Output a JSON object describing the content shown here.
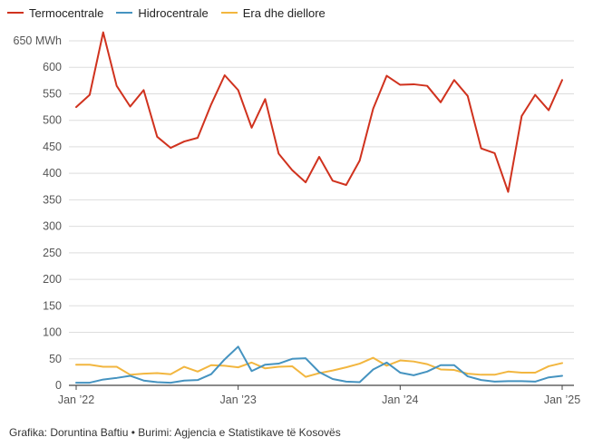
{
  "legend": [
    {
      "name": "Termocentrale",
      "color": "#d0321e"
    },
    {
      "name": "Hidrocentrale",
      "color": "#4593c0"
    },
    {
      "name": "Era dhe diellore",
      "color": "#f2b63f"
    }
  ],
  "footer": "Grafika: Doruntina Baftiu • Burimi: Agjencia e Statistikave të Kosovës",
  "chart_data": {
    "type": "line",
    "x": [
      "2022-01",
      "2022-02",
      "2022-03",
      "2022-04",
      "2022-05",
      "2022-06",
      "2022-07",
      "2022-08",
      "2022-09",
      "2022-10",
      "2022-11",
      "2022-12",
      "2023-01",
      "2023-02",
      "2023-03",
      "2023-04",
      "2023-05",
      "2023-06",
      "2023-07",
      "2023-08",
      "2023-09",
      "2023-10",
      "2023-11",
      "2023-12",
      "2024-01",
      "2024-02",
      "2024-03",
      "2024-04",
      "2024-05",
      "2024-06",
      "2024-07",
      "2024-08",
      "2024-09",
      "2024-10",
      "2024-11",
      "2024-12",
      "2025-01"
    ],
    "x_ticks": [
      {
        "x": "2022-01",
        "label": "Jan ’22"
      },
      {
        "x": "2023-01",
        "label": "Jan ’23"
      },
      {
        "x": "2024-01",
        "label": "Jan ’24"
      },
      {
        "x": "2025-01",
        "label": "Jan ’25"
      }
    ],
    "y_ticks": [
      {
        "value": 0,
        "label": "0"
      },
      {
        "value": 50,
        "label": "50"
      },
      {
        "value": 100,
        "label": "100"
      },
      {
        "value": 150,
        "label": "150"
      },
      {
        "value": 200,
        "label": "200"
      },
      {
        "value": 250,
        "label": "250"
      },
      {
        "value": 300,
        "label": "300"
      },
      {
        "value": 350,
        "label": "350"
      },
      {
        "value": 400,
        "label": "400"
      },
      {
        "value": 450,
        "label": "450"
      },
      {
        "value": 500,
        "label": "500"
      },
      {
        "value": 550,
        "label": "550"
      },
      {
        "value": 600,
        "label": "600"
      },
      {
        "value": 650,
        "label": "650 MWh"
      }
    ],
    "ylim": [
      0,
      650
    ],
    "grid": true,
    "legend_position": "top-left",
    "series": [
      {
        "name": "Termocentrale",
        "color": "#d0321e",
        "values": [
          525,
          548,
          666,
          565,
          526,
          557,
          469,
          448,
          460,
          467,
          530,
          585,
          557,
          486,
          540,
          437,
          406,
          383,
          431,
          386,
          378,
          424,
          522,
          584,
          567,
          568,
          565,
          534,
          576,
          546,
          447,
          438,
          365,
          508,
          548,
          519,
          576
        ]
      },
      {
        "name": "Hidrocentrale",
        "color": "#4593c0",
        "values": [
          5,
          5,
          11,
          14,
          18,
          9,
          6,
          5,
          9,
          10,
          21,
          49,
          73,
          27,
          39,
          41,
          50,
          51,
          25,
          12,
          7,
          6,
          30,
          43,
          24,
          19,
          26,
          38,
          38,
          17,
          10,
          7,
          8,
          8,
          7,
          15,
          18
        ]
      },
      {
        "name": "Era dhe diellore",
        "color": "#f2b63f",
        "values": [
          39,
          39,
          35,
          35,
          20,
          22,
          23,
          21,
          35,
          26,
          38,
          37,
          34,
          43,
          32,
          35,
          36,
          16,
          23,
          28,
          34,
          41,
          52,
          37,
          47,
          45,
          40,
          30,
          29,
          22,
          20,
          20,
          26,
          24,
          24,
          36,
          42
        ]
      }
    ]
  }
}
